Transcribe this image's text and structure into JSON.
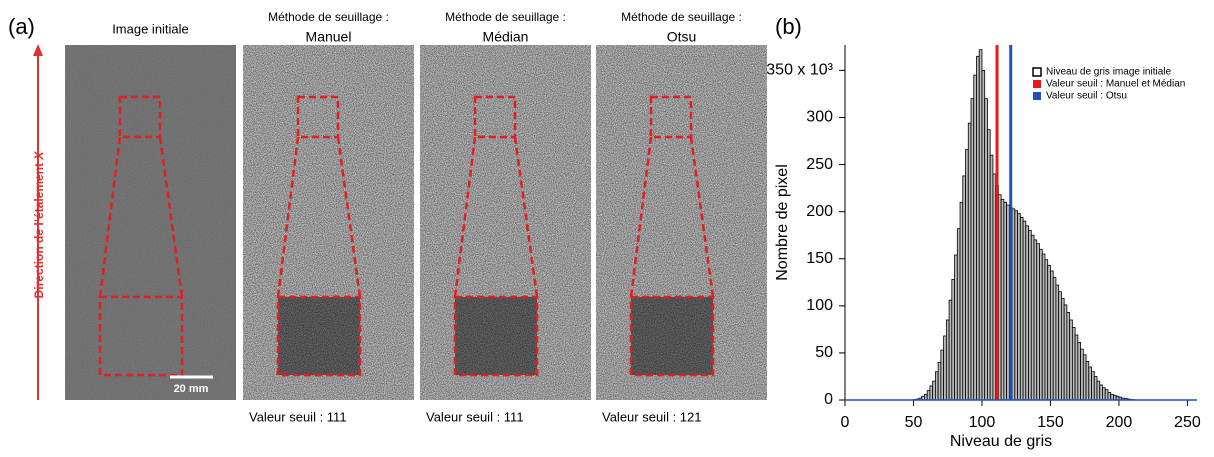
{
  "panel_a": {
    "label": "(a)",
    "axis_label": "Direction de l’étalement",
    "axis_label_var": "X",
    "scale_bar": "20 mm",
    "images": [
      {
        "title": "Image initiale"
      },
      {
        "title": "Méthode de seuillage :",
        "method": "Manuel",
        "threshold": "Valeur seuil : 111"
      },
      {
        "title": "Méthode de seuillage :",
        "method": "Médian",
        "threshold": "Valeur seuil : 111"
      },
      {
        "title": "Méthode de seuillage :",
        "method": "Otsu",
        "threshold": "Valeur seuil : 121"
      }
    ]
  },
  "chart_data": {
    "type": "histogram",
    "panel_label": "(b)",
    "xlabel": "Niveau de gris",
    "ylabel": "Nombre de pixel",
    "bins": [
      50,
      52,
      54,
      56,
      58,
      60,
      62,
      64,
      66,
      68,
      70,
      72,
      74,
      76,
      78,
      80,
      82,
      84,
      86,
      88,
      90,
      92,
      94,
      96,
      98,
      100,
      102,
      104,
      106,
      108,
      110,
      112,
      114,
      116,
      118,
      120,
      122,
      124,
      126,
      128,
      130,
      132,
      134,
      136,
      138,
      140,
      142,
      144,
      146,
      148,
      150,
      152,
      154,
      156,
      158,
      160,
      162,
      164,
      166,
      168,
      170,
      172,
      174,
      176,
      178,
      180,
      182,
      184,
      186,
      188,
      190,
      192,
      194,
      196,
      198,
      200,
      202,
      204,
      206,
      208,
      210,
      212
    ],
    "series": [
      {
        "name": "Niveau de gris image initiale",
        "color": "#000000",
        "values": [
          0.5,
          1,
          2,
          4,
          6,
          10,
          15,
          20,
          30,
          40,
          53,
          68,
          85,
          106,
          128,
          154,
          182,
          210,
          238,
          266,
          294,
          320,
          345,
          365,
          372,
          350,
          320,
          287,
          260,
          240,
          228,
          218,
          213,
          210,
          207,
          205,
          203,
          201,
          198,
          194,
          190,
          185,
          180,
          175,
          170,
          166,
          160,
          155,
          149,
          143,
          137,
          130,
          122,
          115,
          108,
          101,
          93,
          85,
          77,
          69,
          61,
          54,
          48,
          41,
          35,
          30,
          25,
          20,
          16,
          13,
          11,
          8,
          6,
          5,
          4,
          3,
          2,
          1.5,
          1,
          0.5,
          0.3
        ]
      }
    ],
    "thresholds": [
      {
        "name": "Valeur seuil : Manuel et Médian",
        "color": "#e41a1c",
        "x": 111
      },
      {
        "name": "Valeur seuil : Otsu",
        "color": "#1f4fc4",
        "x": 121
      }
    ],
    "xlim": [
      0,
      257
    ],
    "ylim": [
      0,
      377
    ],
    "xticks": [
      0,
      50,
      100,
      150,
      200,
      250
    ],
    "yticks": [
      0,
      50,
      100,
      150,
      200,
      250,
      300,
      {
        "value": 350,
        "label": "350 x 10³"
      }
    ],
    "legend": "upper right"
  }
}
